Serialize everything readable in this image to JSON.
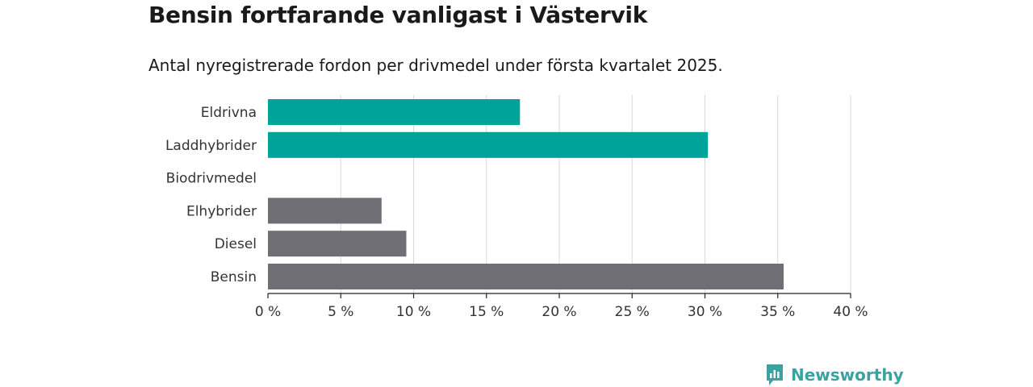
{
  "title": "Bensin fortfarande vanligast i Västervik",
  "subtitle": "Antal nyregistrerade fordon per drivmedel under första kvartalet 2025.",
  "brand": {
    "name": "Newsworthy",
    "icon": "newsworthy-logo-icon"
  },
  "colors": {
    "highlight": "#00a39a",
    "default": "#6f6e74",
    "grid": "#d9d9d9",
    "axis": "#222222"
  },
  "chart_data": {
    "type": "bar",
    "orientation": "horizontal",
    "categories": [
      "Eldrivna",
      "Laddhybrider",
      "Biodrivmedel",
      "Elhybrider",
      "Diesel",
      "Bensin"
    ],
    "values": [
      17.3,
      30.2,
      0,
      7.8,
      9.5,
      35.4
    ],
    "bar_colors": [
      "#00a39a",
      "#00a39a",
      "#6f6e74",
      "#6f6e74",
      "#6f6e74",
      "#6f6e74"
    ],
    "xlim": [
      0,
      40
    ],
    "xticks": [
      0,
      5,
      10,
      15,
      20,
      25,
      30,
      35,
      40
    ],
    "tick_labels": [
      "0 %",
      "5 %",
      "10 %",
      "15 %",
      "20 %",
      "25 %",
      "30 %",
      "35 %",
      "40 %"
    ],
    "xlabel": "",
    "ylabel": "",
    "grid": true
  }
}
